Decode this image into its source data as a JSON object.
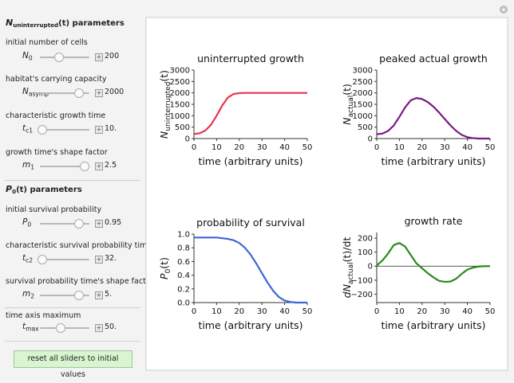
{
  "controls": {
    "sections": [
      {
        "heading": [
          {
            "text": "N"
          },
          {
            "text": "uninterrupted",
            "sub": true
          },
          {
            "text": "(t) parameters"
          }
        ],
        "items": [
          {
            "label": "initial number of cells",
            "symbol": [
              {
                "text": "N"
              },
              {
                "text": "0",
                "sub": true
              }
            ],
            "value": "200"
          },
          {
            "label": "habitat's carrying capacity",
            "symbol": [
              {
                "text": "N"
              },
              {
                "text": "asymp",
                "sub": true
              }
            ],
            "value": "2000"
          },
          {
            "label": "characteristic growth time",
            "symbol": [
              {
                "text": "t"
              },
              {
                "text": "c1",
                "sub": true
              }
            ],
            "value": "10."
          },
          {
            "label": "growth time's shape factor",
            "symbol": [
              {
                "text": "m"
              },
              {
                "text": "1",
                "sub": true
              }
            ],
            "value": "2.5"
          }
        ]
      },
      {
        "heading": [
          {
            "text": "P"
          },
          {
            "text": "0",
            "sub": true
          },
          {
            "text": "(t) parameters"
          }
        ],
        "items": [
          {
            "label": "initial survival probability",
            "symbol": [
              {
                "text": "P"
              },
              {
                "text": "0",
                "sub": true
              }
            ],
            "value": "0.95"
          },
          {
            "label": "characteristic survival probability time",
            "symbol": [
              {
                "text": "t"
              },
              {
                "text": "c2",
                "sub": true
              }
            ],
            "value": "32."
          },
          {
            "label": "survival probability time's shape factor",
            "symbol": [
              {
                "text": "m"
              },
              {
                "text": "2",
                "sub": true
              }
            ],
            "value": "5."
          }
        ]
      },
      {
        "items": [
          {
            "label": "time axis maximum",
            "symbol": [
              {
                "text": "t"
              },
              {
                "text": "max",
                "sub": true
              }
            ],
            "value": "50."
          }
        ]
      }
    ],
    "reset_button": "reset all sliders to initial values"
  },
  "chart_data": [
    {
      "type": "line",
      "title": "uninterrupted growth",
      "xlabel": "time (arbitrary units)",
      "ylabel": [
        {
          "text": "N"
        },
        {
          "text": "uninterrupted",
          "sub": true
        },
        {
          "text": "(t)"
        }
      ],
      "x": [
        0,
        2.5,
        5,
        7.5,
        10,
        12.5,
        15,
        17.5,
        20,
        22.5,
        25,
        27.5,
        30,
        32.5,
        35,
        37.5,
        40,
        42.5,
        45,
        47.5,
        50
      ],
      "values": [
        200,
        230,
        350,
        600,
        1000,
        1450,
        1800,
        1950,
        1990,
        2000,
        2000,
        2000,
        2000,
        2000,
        2000,
        2000,
        2000,
        2000,
        2000,
        2000,
        2000
      ],
      "color": "#e8344e",
      "xlim": [
        0,
        50
      ],
      "ylim": [
        0,
        3000
      ],
      "xticks": [
        0,
        10,
        20,
        30,
        40,
        50
      ],
      "yticks": [
        0,
        500,
        1000,
        1500,
        2000,
        2500,
        3000
      ]
    },
    {
      "type": "line",
      "title": "peaked actual growth",
      "xlabel": "time (arbitrary units)",
      "ylabel": [
        {
          "text": "N"
        },
        {
          "text": "actual",
          "sub": true
        },
        {
          "text": "(t)"
        }
      ],
      "x": [
        0,
        2.5,
        5,
        7.5,
        10,
        12.5,
        15,
        17.5,
        20,
        22.5,
        25,
        27.5,
        30,
        32.5,
        35,
        37.5,
        40,
        42.5,
        45,
        47.5,
        50
      ],
      "values": [
        190,
        219,
        333,
        570,
        950,
        1363,
        1674,
        1775,
        1731,
        1600,
        1400,
        1140,
        860,
        580,
        340,
        160,
        60,
        20,
        0,
        0,
        0
      ],
      "color": "#7a1a86",
      "xlim": [
        0,
        50
      ],
      "ylim": [
        0,
        3000
      ],
      "xticks": [
        0,
        10,
        20,
        30,
        40,
        50
      ],
      "yticks": [
        0,
        500,
        1000,
        1500,
        2000,
        2500,
        3000
      ]
    },
    {
      "type": "line",
      "title": "probability of survival",
      "xlabel": "time (arbitrary units)",
      "ylabel": [
        {
          "text": "P"
        },
        {
          "text": "0",
          "sub": true
        },
        {
          "text": "(t)"
        }
      ],
      "x": [
        0,
        2.5,
        5,
        7.5,
        10,
        12.5,
        15,
        17.5,
        20,
        22.5,
        25,
        27.5,
        30,
        32.5,
        35,
        37.5,
        40,
        42.5,
        45,
        47.5,
        50
      ],
      "values": [
        0.95,
        0.95,
        0.95,
        0.95,
        0.95,
        0.94,
        0.93,
        0.91,
        0.87,
        0.8,
        0.7,
        0.57,
        0.43,
        0.29,
        0.17,
        0.08,
        0.03,
        0.01,
        0,
        0,
        0
      ],
      "color": "#3d66d9",
      "xlim": [
        0,
        50
      ],
      "ylim": [
        0,
        1
      ],
      "xticks": [
        0,
        10,
        20,
        30,
        40,
        50
      ],
      "yticks": [
        {
          "value": 0,
          "label": "0.0"
        },
        0.2,
        0.4,
        0.6,
        0.8,
        {
          "value": 1,
          "label": "1.0"
        }
      ]
    },
    {
      "type": "line",
      "title": "growth rate",
      "xlabel": "time (arbitrary units)",
      "ylabel": [
        {
          "text": "dN"
        },
        {
          "text": "actual",
          "sub": true
        },
        {
          "text": "(t)/dt"
        }
      ],
      "x": [
        0,
        2.5,
        5,
        7.5,
        10,
        12.5,
        15,
        17.5,
        20,
        22.5,
        25,
        27.5,
        30,
        32.5,
        35,
        37.5,
        40,
        42.5,
        45,
        47.5,
        50
      ],
      "values": [
        5,
        40,
        90,
        150,
        165,
        140,
        80,
        20,
        -15,
        -50,
        -80,
        -105,
        -112,
        -110,
        -90,
        -55,
        -25,
        -10,
        -3,
        0,
        0
      ],
      "color": "#2a8a1a",
      "xlim": [
        0,
        50
      ],
      "ylim": [
        -260,
        240
      ],
      "zero_line": true,
      "xticks": [
        0,
        10,
        20,
        30,
        40,
        50
      ],
      "yticks": [
        {
          "value": -200,
          "label": "−200"
        },
        {
          "value": -100,
          "label": "−100"
        },
        0,
        100,
        200
      ]
    }
  ]
}
